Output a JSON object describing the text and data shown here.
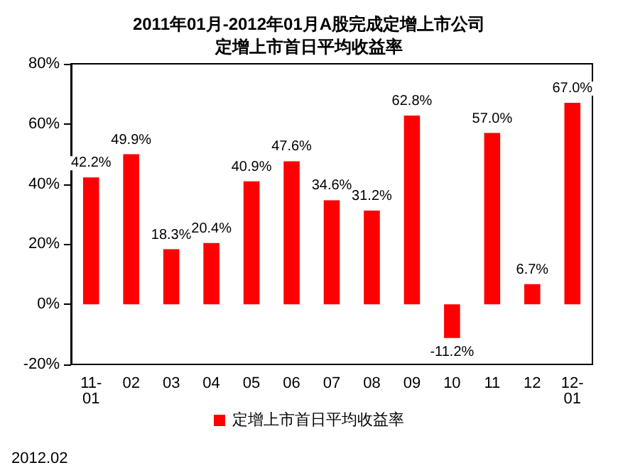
{
  "chart_data": {
    "type": "bar",
    "title": "2011年01月-2012年01月A股完成定增上市公司",
    "subtitle": "定增上市首日平均收益率",
    "categories": [
      "11-01",
      "02",
      "03",
      "04",
      "05",
      "06",
      "07",
      "08",
      "09",
      "10",
      "11",
      "12",
      "12-01"
    ],
    "series": [
      {
        "name": "定增上市首日平均收益率",
        "color": "#ff0000",
        "values": [
          42.2,
          49.9,
          18.3,
          20.4,
          40.9,
          47.6,
          34.6,
          31.2,
          62.8,
          -11.2,
          57.0,
          6.7,
          67.0
        ],
        "value_labels": [
          "42.2%",
          "49.9%",
          "18.3%",
          "20.4%",
          "40.9%",
          "47.6%",
          "34.6%",
          "31.2%",
          "62.8%",
          "-11.2%",
          "57.0%",
          "6.7%",
          "67.0%"
        ]
      }
    ],
    "ylim": [
      -20,
      80
    ],
    "yticks": [
      {
        "value": -20,
        "label": "-20%"
      },
      {
        "value": 0,
        "label": "0%"
      },
      {
        "value": 20,
        "label": "20%"
      },
      {
        "value": 40,
        "label": "40%"
      },
      {
        "value": 60,
        "label": "60%"
      },
      {
        "value": 80,
        "label": "80%"
      }
    ],
    "grid": false,
    "legend": "bottom",
    "annotations": [
      "2012.02"
    ]
  }
}
